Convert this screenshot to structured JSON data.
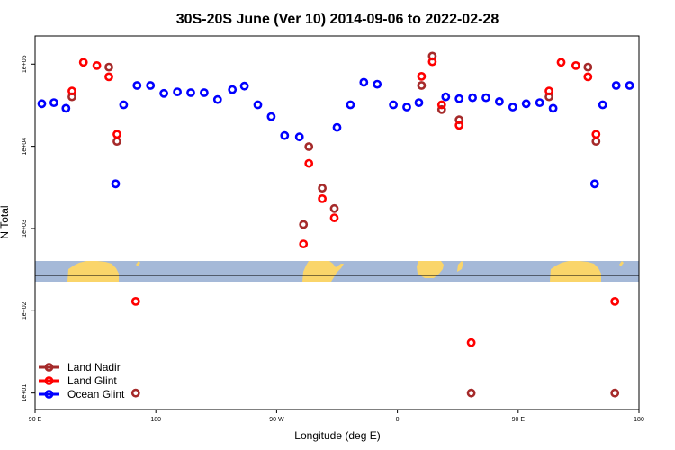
{
  "chart_data": {
    "type": "scatter",
    "title": "30S-20S June (Ver 10)   2014-09-06 to 2022-02-28",
    "xlabel": "Longitude (deg E)",
    "ylabel": "N Total",
    "x_ticks": [
      {
        "value": 90,
        "label": "90 E"
      },
      {
        "value": 180,
        "label": "180"
      },
      {
        "value": 270,
        "label": "90 W"
      },
      {
        "value": 360,
        "label": "0"
      },
      {
        "value": 450,
        "label": "90 E"
      },
      {
        "value": 540,
        "label": "180"
      }
    ],
    "y_scale": "log",
    "y_ticks": [
      {
        "value": 10,
        "label": "1e+01"
      },
      {
        "value": 100,
        "label": "1e+02"
      },
      {
        "value": 1000,
        "label": "1e+03"
      },
      {
        "value": 10000,
        "label": "1e+04"
      },
      {
        "value": 100000,
        "label": "1e+05"
      }
    ],
    "xlim": [
      90,
      540
    ],
    "ylim": [
      6.3,
      220000
    ],
    "legend_position": "bottom-left",
    "series": [
      {
        "name": "Land Nadir",
        "color": "#a52a2a",
        "points": [
          [
            117.5,
            40000
          ],
          [
            145.0,
            92000
          ],
          [
            151.0,
            11500
          ],
          [
            165.0,
            10
          ],
          [
            290.0,
            1120
          ],
          [
            294.0,
            9900
          ],
          [
            304.0,
            3100
          ],
          [
            313.0,
            1750
          ],
          [
            378.0,
            55000
          ],
          [
            386.0,
            125000
          ],
          [
            393.0,
            28000
          ],
          [
            406.0,
            21000
          ],
          [
            415.0,
            10
          ],
          [
            473.0,
            40000
          ],
          [
            502.0,
            92000
          ],
          [
            508.0,
            11500
          ],
          [
            522.0,
            10
          ]
        ]
      },
      {
        "name": "Land Glint",
        "color": "#ff0000",
        "points": [
          [
            117.5,
            47000
          ],
          [
            126.0,
            105000
          ],
          [
            136.0,
            96000
          ],
          [
            145.0,
            70000
          ],
          [
            151.0,
            14000
          ],
          [
            165.0,
            130
          ],
          [
            290.0,
            650
          ],
          [
            294.0,
            6200
          ],
          [
            304.0,
            2300
          ],
          [
            313.0,
            1350
          ],
          [
            378.0,
            71000
          ],
          [
            386.0,
            107000
          ],
          [
            393.0,
            32000
          ],
          [
            406.0,
            18000
          ],
          [
            415.0,
            41
          ],
          [
            473.0,
            47000
          ],
          [
            482.0,
            105000
          ],
          [
            493.0,
            96000
          ],
          [
            502.0,
            70000
          ],
          [
            508.0,
            14000
          ],
          [
            522.0,
            130
          ]
        ]
      },
      {
        "name": "Ocean Glint",
        "color": "#0000ff",
        "points": [
          [
            95.0,
            33000
          ],
          [
            104.0,
            34000
          ],
          [
            113.0,
            29000
          ],
          [
            150.0,
            3500
          ],
          [
            156.0,
            32000
          ],
          [
            166.0,
            55000
          ],
          [
            176.0,
            55000
          ],
          [
            186.0,
            44000
          ],
          [
            196.0,
            46000
          ],
          [
            206.0,
            45000
          ],
          [
            216.0,
            45000
          ],
          [
            226.0,
            37000
          ],
          [
            237.0,
            49000
          ],
          [
            246.0,
            54000
          ],
          [
            256.0,
            32000
          ],
          [
            266.0,
            23000
          ],
          [
            276.0,
            13500
          ],
          [
            287.0,
            13000
          ],
          [
            315.0,
            17000
          ],
          [
            325.0,
            32000
          ],
          [
            335.0,
            60000
          ],
          [
            345.0,
            57000
          ],
          [
            357.0,
            32000
          ],
          [
            367.0,
            30000
          ],
          [
            376.0,
            34000
          ],
          [
            396.0,
            40000
          ],
          [
            406.0,
            38000
          ],
          [
            416.0,
            39000
          ],
          [
            426.0,
            39000
          ],
          [
            436.0,
            35000
          ],
          [
            446.0,
            30000
          ],
          [
            456.0,
            33000
          ],
          [
            466.0,
            34000
          ],
          [
            476.0,
            29000
          ],
          [
            507.0,
            3500
          ],
          [
            513.0,
            32000
          ],
          [
            523.0,
            55000
          ],
          [
            533.0,
            55000
          ]
        ]
      }
    ]
  }
}
